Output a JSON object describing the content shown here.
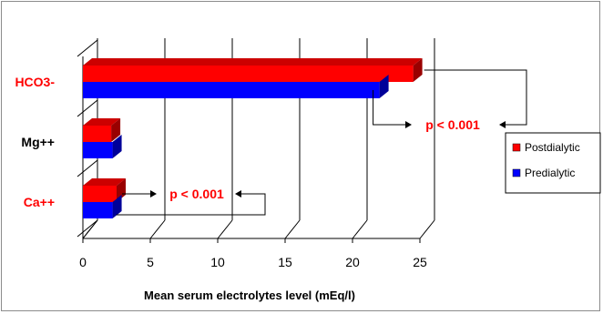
{
  "chart_data": {
    "type": "bar",
    "orientation": "horizontal",
    "categories": [
      "HCO3-",
      "Mg++",
      "Ca++"
    ],
    "category_colors": [
      "#ff0000",
      "#000000",
      "#ff0000"
    ],
    "series": [
      {
        "name": "Postdialytic",
        "color": "#ff0000",
        "values": [
          24.5,
          2.1,
          2.5
        ]
      },
      {
        "name": "Predialytic",
        "color": "#0000ff",
        "values": [
          22.0,
          2.2,
          2.2
        ]
      }
    ],
    "xlabel": "Mean serum electrolytes level (mEq/l)",
    "xlim": [
      0,
      25
    ],
    "xticks": [
      0,
      5,
      10,
      15,
      20,
      25
    ],
    "grid": true,
    "legend": "right",
    "annotations": [
      {
        "text": "p < 0.001",
        "category": "HCO3-"
      },
      {
        "text": "p < 0.001",
        "category": "Ca++"
      }
    ]
  }
}
